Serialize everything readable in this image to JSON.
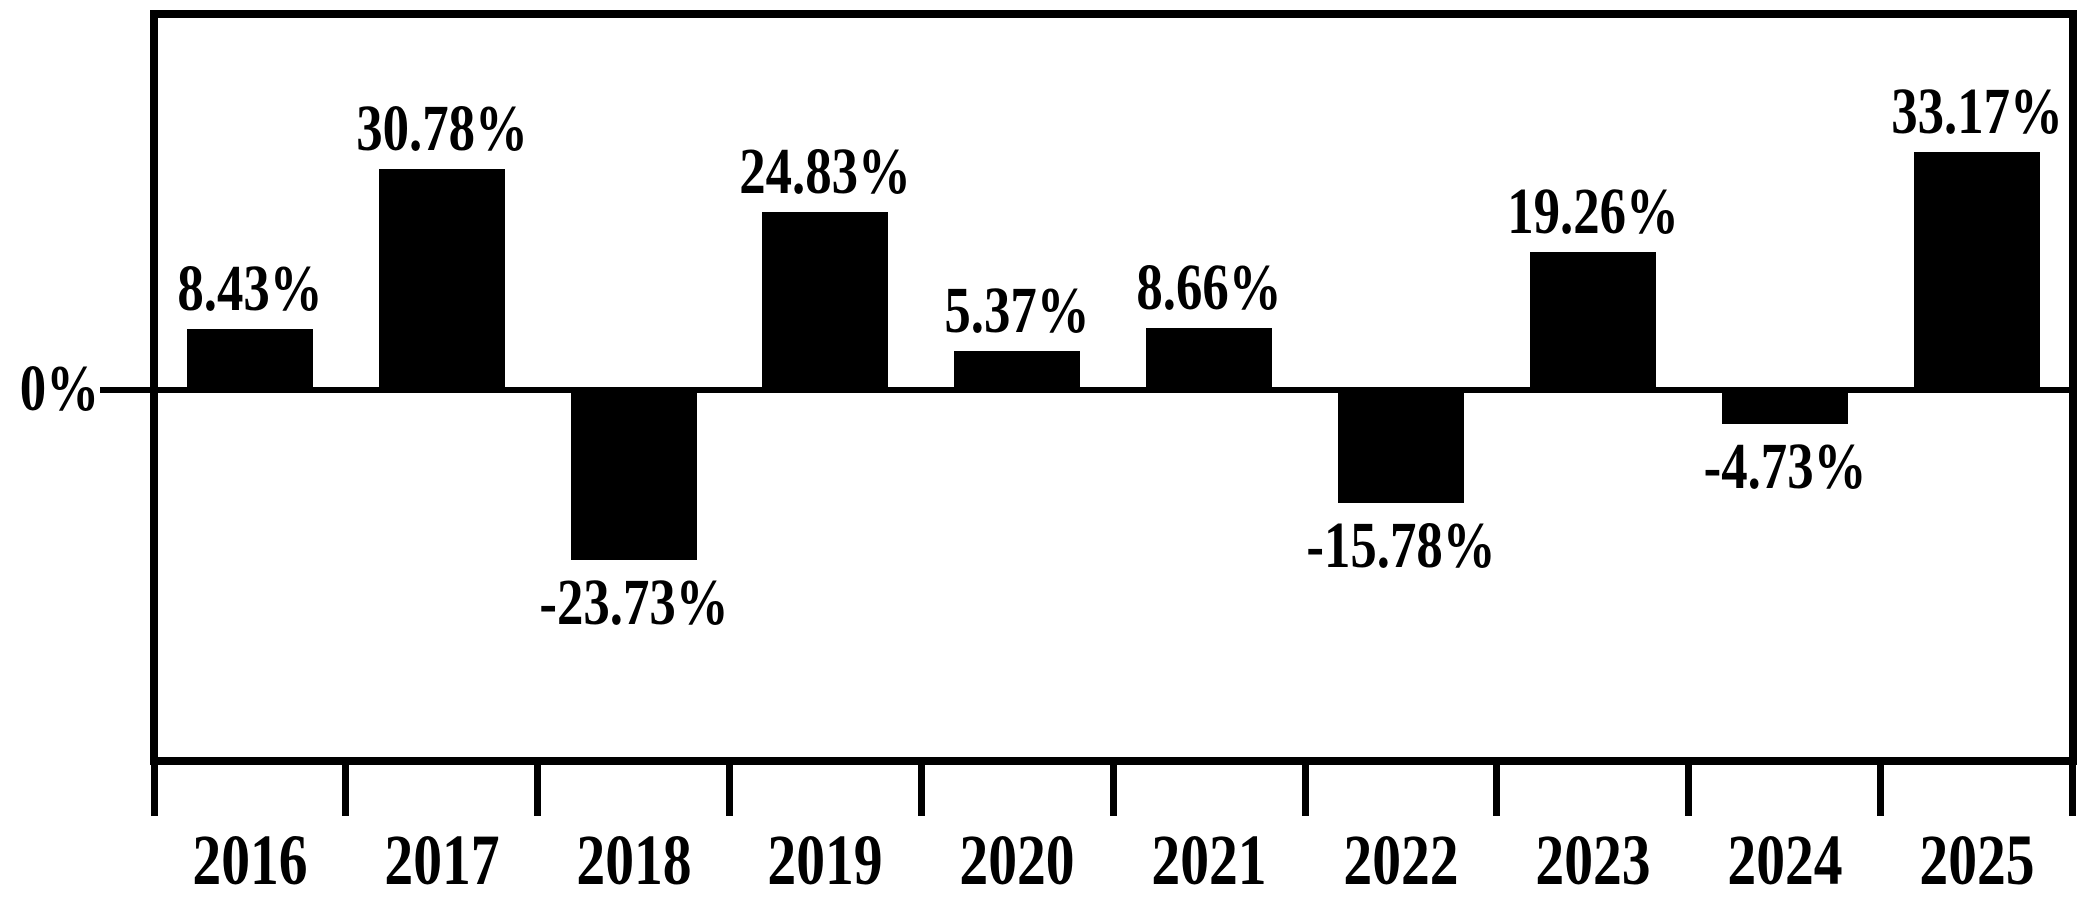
{
  "chart_data": {
    "type": "bar",
    "title": "",
    "xlabel": "",
    "ylabel": "",
    "categories": [
      "2016",
      "2017",
      "2018",
      "2019",
      "2020",
      "2021",
      "2022",
      "2023",
      "2024",
      "2025"
    ],
    "values": [
      8.43,
      30.78,
      -23.73,
      24.83,
      5.37,
      8.66,
      -15.78,
      19.26,
      -4.73,
      33.17
    ],
    "bar_labels": [
      "8.43%",
      "30.78%",
      "-23.73%",
      "24.83%",
      "5.37%",
      "8.66%",
      "-15.78%",
      "19.26%",
      "-4.73%",
      "33.17%"
    ],
    "y_axis": {
      "zero_label": "0%",
      "ylim": [
        -51,
        52
      ],
      "gridlines": false
    },
    "legend": false,
    "colors": {
      "bar": "#000000",
      "background": "#ffffff",
      "axis": "#000000",
      "text": "#000000"
    }
  }
}
